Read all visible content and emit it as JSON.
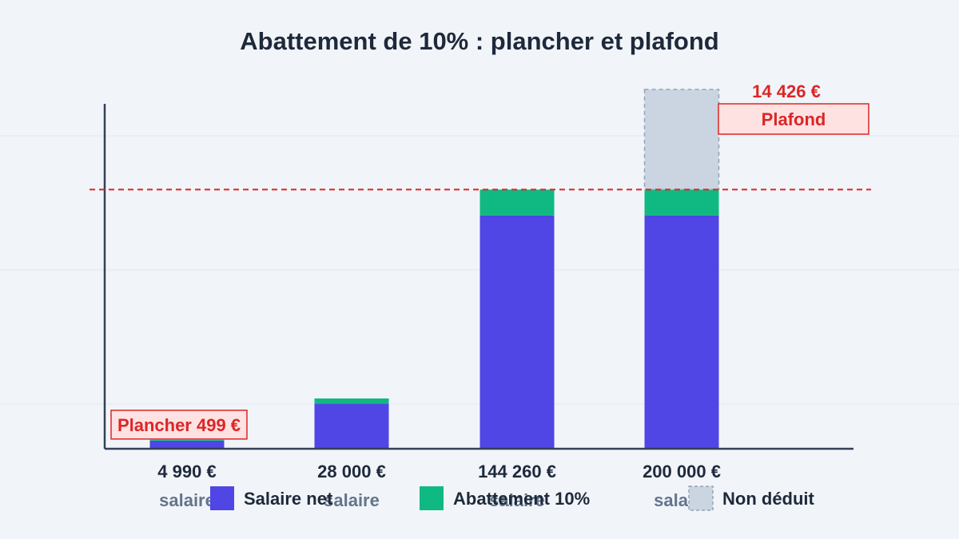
{
  "colors": {
    "salaire_net": "#4f46e5",
    "abattement": "#10b981",
    "non_deduit": "#cbd5e1",
    "plafond_line": "#dc2626",
    "annotation_fill": "#fee2e2",
    "annotation_text": "#dc2626",
    "axis": "#334155",
    "tick_text": "#1e293b",
    "subtick_text": "#64748b",
    "grid": "#e2e8f0"
  },
  "chart_data": {
    "type": "bar",
    "stacked": true,
    "title": "Abattement de 10% : plancher et plafond",
    "xlabel": "",
    "ylabel": "",
    "categories": [
      "4 990 €",
      "28 000 €",
      "144 260 €",
      "200 000 €"
    ],
    "category_sublabels": [
      "salaire",
      "salaire",
      "salaire",
      "salaire"
    ],
    "series": [
      {
        "name": "Salaire net",
        "color_key": "salaire_net",
        "values": [
          4491,
          25200,
          129834,
          129834
        ]
      },
      {
        "name": "Abattement 10%",
        "color_key": "abattement",
        "values": [
          499,
          2800,
          14426,
          14426
        ]
      },
      {
        "name": "Non déduit",
        "color_key": "non_deduit",
        "values": [
          0,
          0,
          0,
          55740
        ],
        "dashed": true
      }
    ],
    "reference_line": {
      "value": 144260,
      "style": "dashed"
    },
    "annotations": [
      {
        "text": "Plancher 499 €",
        "category_index": 0
      },
      {
        "text": "14 426 €",
        "category_index": 3,
        "style": "plain"
      },
      {
        "text": "Plafond",
        "category_index": 3,
        "style": "boxed"
      }
    ],
    "ylim": [
      0,
      200000
    ],
    "grid": true,
    "legend": {
      "placement": "bottom"
    }
  }
}
